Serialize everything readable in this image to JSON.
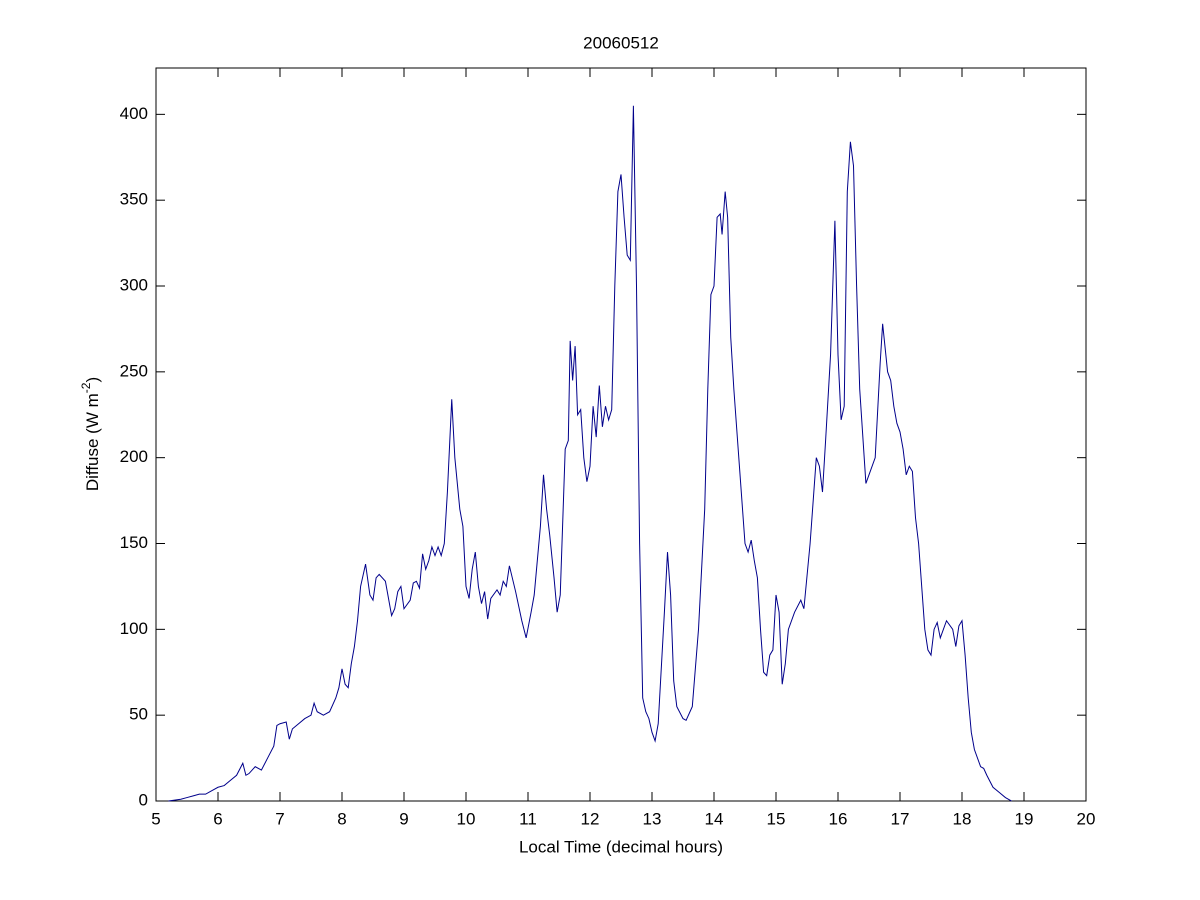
{
  "chart_data": {
    "type": "line",
    "title": "20060512",
    "xlabel": "Local Time (decimal hours)",
    "ylabel": [
      "Diffuse (W m",
      "-2",
      ")"
    ],
    "xlim": [
      5,
      20
    ],
    "ylim": [
      0,
      427
    ],
    "xticks": [
      5,
      6,
      7,
      8,
      9,
      10,
      11,
      12,
      13,
      14,
      15,
      16,
      17,
      18,
      19,
      20
    ],
    "yticks": [
      0,
      50,
      100,
      150,
      200,
      250,
      300,
      350,
      400
    ],
    "grid": false,
    "series": [
      {
        "color": "#00008b",
        "x": [
          5.2,
          5.3,
          5.4,
          5.5,
          5.6,
          5.7,
          5.8,
          5.9,
          6.0,
          6.1,
          6.2,
          6.3,
          6.4,
          6.45,
          6.5,
          6.6,
          6.7,
          6.8,
          6.9,
          6.95,
          7.0,
          7.1,
          7.15,
          7.2,
          7.3,
          7.4,
          7.5,
          7.55,
          7.6,
          7.7,
          7.8,
          7.9,
          7.95,
          8.0,
          8.05,
          8.1,
          8.15,
          8.2,
          8.25,
          8.3,
          8.38,
          8.45,
          8.5,
          8.55,
          8.6,
          8.7,
          8.8,
          8.85,
          8.9,
          8.95,
          9.0,
          9.1,
          9.15,
          9.2,
          9.25,
          9.3,
          9.35,
          9.4,
          9.45,
          9.5,
          9.55,
          9.6,
          9.65,
          9.7,
          9.77,
          9.82,
          9.9,
          9.95,
          10.0,
          10.05,
          10.1,
          10.15,
          10.2,
          10.25,
          10.3,
          10.35,
          10.4,
          10.5,
          10.55,
          10.6,
          10.65,
          10.7,
          10.8,
          10.9,
          10.97,
          11.05,
          11.1,
          11.2,
          11.25,
          11.3,
          11.35,
          11.42,
          11.47,
          11.52,
          11.6,
          11.65,
          11.68,
          11.72,
          11.76,
          11.8,
          11.85,
          11.9,
          11.95,
          12.0,
          12.05,
          12.1,
          12.15,
          12.2,
          12.25,
          12.3,
          12.35,
          12.4,
          12.45,
          12.5,
          12.55,
          12.6,
          12.65,
          12.7,
          12.75,
          12.8,
          12.85,
          12.9,
          12.95,
          13.0,
          13.05,
          13.1,
          13.2,
          13.25,
          13.3,
          13.35,
          13.4,
          13.5,
          13.55,
          13.65,
          13.75,
          13.85,
          13.9,
          13.95,
          14.0,
          14.05,
          14.1,
          14.13,
          14.18,
          14.22,
          14.27,
          14.32,
          14.4,
          14.5,
          14.55,
          14.6,
          14.65,
          14.7,
          14.75,
          14.8,
          14.85,
          14.9,
          14.95,
          15.0,
          15.05,
          15.1,
          15.15,
          15.2,
          15.3,
          15.4,
          15.45,
          15.55,
          15.65,
          15.7,
          15.75,
          15.8,
          15.88,
          15.95,
          16.0,
          16.05,
          16.1,
          16.15,
          16.2,
          16.25,
          16.3,
          16.35,
          16.45,
          16.5,
          16.6,
          16.68,
          16.72,
          16.8,
          16.85,
          16.9,
          16.95,
          17.0,
          17.05,
          17.1,
          17.15,
          17.2,
          17.25,
          17.3,
          17.35,
          17.4,
          17.45,
          17.5,
          17.55,
          17.6,
          17.65,
          17.7,
          17.75,
          17.85,
          17.9,
          17.95,
          18.0,
          18.05,
          18.1,
          18.15,
          18.2,
          18.3,
          18.35,
          18.4,
          18.5,
          18.6,
          18.7,
          18.8
        ],
        "values": [
          0,
          0.5,
          1,
          2,
          3,
          4,
          4,
          6,
          8,
          9,
          12,
          15,
          22,
          15,
          16,
          20,
          18,
          25,
          32,
          44,
          45,
          46,
          36,
          42,
          45,
          48,
          50,
          57,
          52,
          50,
          52,
          60,
          66,
          77,
          68,
          66,
          80,
          90,
          105,
          125,
          138,
          120,
          117,
          130,
          132,
          128,
          108,
          112,
          122,
          125,
          112,
          117,
          127,
          128,
          124,
          144,
          135,
          140,
          148,
          143,
          148,
          143,
          150,
          180,
          234,
          200,
          170,
          160,
          125,
          118,
          135,
          145,
          125,
          115,
          122,
          106,
          118,
          123,
          120,
          128,
          125,
          137,
          122,
          105,
          95,
          110,
          120,
          160,
          190,
          170,
          155,
          130,
          110,
          120,
          205,
          210,
          268,
          245,
          265,
          225,
          228,
          200,
          186,
          195,
          230,
          212,
          242,
          218,
          230,
          222,
          228,
          300,
          355,
          365,
          340,
          318,
          315,
          405,
          300,
          150,
          60,
          52,
          48,
          40,
          35,
          45,
          110,
          145,
          120,
          70,
          55,
          48,
          47,
          55,
          100,
          170,
          240,
          295,
          300,
          340,
          342,
          330,
          355,
          340,
          270,
          240,
          200,
          150,
          145,
          152,
          140,
          130,
          100,
          75,
          73,
          85,
          88,
          120,
          110,
          68,
          80,
          100,
          110,
          117,
          112,
          150,
          200,
          195,
          180,
          210,
          260,
          338,
          260,
          222,
          230,
          355,
          384,
          370,
          300,
          240,
          185,
          190,
          200,
          255,
          278,
          250,
          245,
          230,
          220,
          215,
          205,
          190,
          195,
          192,
          165,
          150,
          125,
          100,
          88,
          85,
          100,
          104,
          95,
          100,
          105,
          100,
          90,
          102,
          105,
          85,
          60,
          40,
          30,
          20,
          19,
          15,
          8,
          5,
          2,
          0
        ]
      }
    ]
  }
}
